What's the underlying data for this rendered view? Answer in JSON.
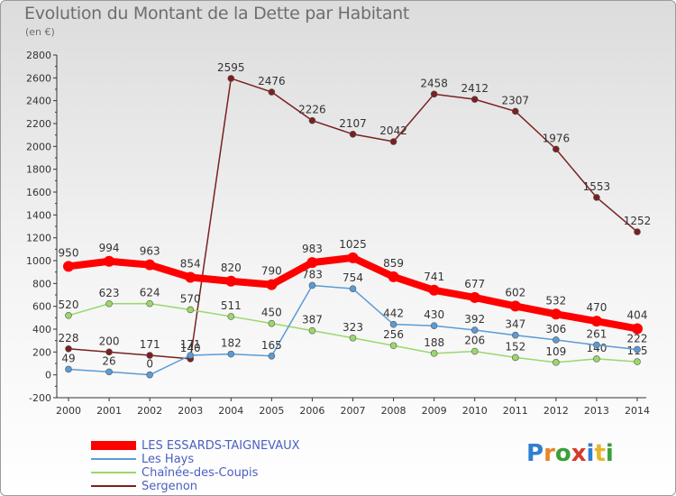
{
  "title": "Evolution du Montant de la Dette par Habitant",
  "unit_label": "(en €)",
  "logo_text": "Proxiti",
  "logo_colors": [
    "#2f7fd0",
    "#e8852a",
    "#3aa03a",
    "#d8392b",
    "#2f7fd0",
    "#e8b42a",
    "#3aa03a"
  ],
  "chart_data": {
    "type": "line",
    "x": [
      "2000",
      "2001",
      "2002",
      "2003",
      "2004",
      "2005",
      "2006",
      "2007",
      "2008",
      "2009",
      "2010",
      "2011",
      "2012",
      "2013",
      "2014"
    ],
    "ylim": [
      -200,
      2800
    ],
    "yticks": [
      "-200",
      "0",
      "200",
      "400",
      "600",
      "800",
      "1000",
      "1200",
      "1400",
      "1600",
      "1800",
      "2000",
      "2200",
      "2400",
      "2600",
      "2800"
    ],
    "grid": false,
    "legend_placement": "bottom-left",
    "series": [
      {
        "name": "Sergenon",
        "color": "#7a2020",
        "values": [
          228,
          200,
          171,
          140,
          2595,
          2476,
          2226,
          2107,
          2042,
          2458,
          2412,
          2307,
          1976,
          1553,
          1252
        ],
        "labels": [
          "228",
          "200",
          "171",
          "140",
          "2595",
          "2476",
          "2226",
          "2107",
          "2042",
          "2458",
          "2412",
          "2307",
          "1976",
          "1553",
          "1252"
        ]
      },
      {
        "name": "Chaînée-des-Coupis",
        "color": "#9ad86a",
        "values": [
          520,
          623,
          624,
          570,
          511,
          450,
          387,
          323,
          256,
          188,
          206,
          152,
          109,
          140,
          115
        ],
        "labels": [
          "520",
          "623",
          "624",
          "570",
          "511",
          "450",
          "387",
          "323",
          "256",
          "188",
          "206",
          "152",
          "109",
          "140",
          "115"
        ]
      },
      {
        "name": "Les Hays",
        "color": "#5b9bd5",
        "values": [
          49,
          26,
          0,
          171,
          182,
          165,
          783,
          754,
          442,
          430,
          392,
          347,
          306,
          261,
          222
        ],
        "labels": [
          "49",
          "26",
          "0",
          "171",
          "182",
          "165",
          "783",
          "754",
          "442",
          "430",
          "392",
          "347",
          "306",
          "261",
          "222"
        ]
      },
      {
        "name": "LES ESSARDS-TAIGNEVAUX",
        "color": "#ff0000",
        "values": [
          950,
          994,
          963,
          854,
          820,
          790,
          983,
          1025,
          859,
          741,
          677,
          602,
          532,
          470,
          404
        ],
        "labels": [
          "950",
          "994",
          "963",
          "854",
          "820",
          "790",
          "983",
          "1025",
          "859",
          "741",
          "677",
          "602",
          "532",
          "470",
          "404"
        ]
      }
    ]
  },
  "legend": [
    {
      "label": "LES ESSARDS-TAIGNEVAUX",
      "color": "#ff0000"
    },
    {
      "label": "Les Hays",
      "color": "#5b9bd5"
    },
    {
      "label": "Chaînée-des-Coupis",
      "color": "#9ad86a"
    },
    {
      "label": "Sergenon",
      "color": "#7a2020"
    }
  ]
}
